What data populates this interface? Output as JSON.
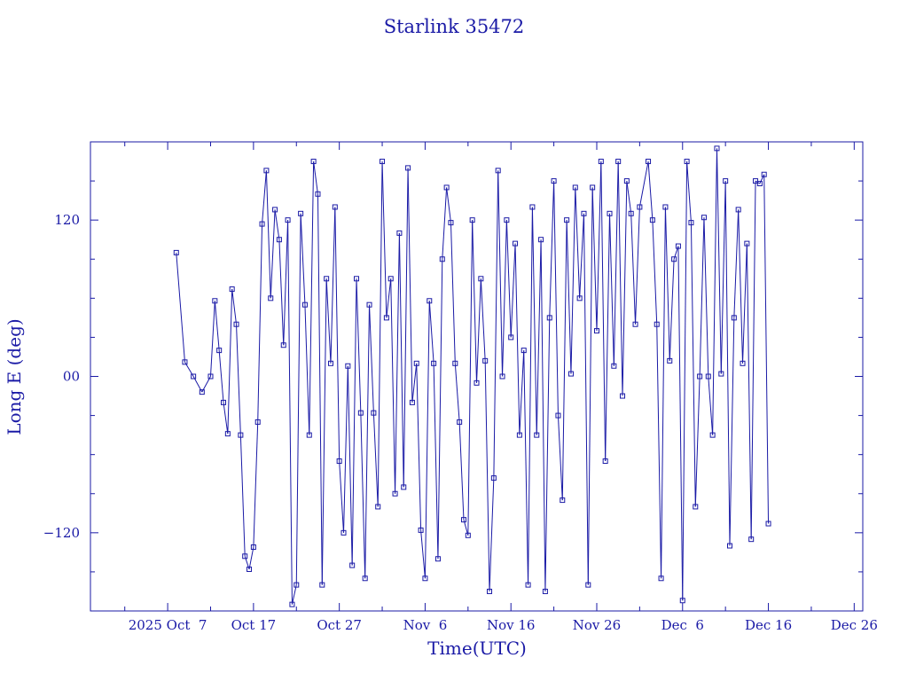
{
  "chart_data": {
    "type": "line",
    "title": "Starlink 35472",
    "xlabel": "Time(UTC)",
    "ylabel": "Long E (deg)",
    "x_unit": "date",
    "xlim": [
      "2025-09-28",
      "2025-12-27"
    ],
    "ylim": [
      -180,
      180
    ],
    "x_ticks": [
      {
        "date": "2025-10-07",
        "label": "2025 Oct  7"
      },
      {
        "date": "2025-10-17",
        "label": "Oct 17"
      },
      {
        "date": "2025-10-27",
        "label": "Oct 27"
      },
      {
        "date": "2025-11-06",
        "label": "Nov  6"
      },
      {
        "date": "2025-11-16",
        "label": "Nov 16"
      },
      {
        "date": "2025-11-26",
        "label": "Nov 26"
      },
      {
        "date": "2025-12-06",
        "label": "Dec  6"
      },
      {
        "date": "2025-12-16",
        "label": "Dec 16"
      },
      {
        "date": "2025-12-26",
        "label": "Dec 26"
      }
    ],
    "y_ticks": [
      {
        "value": 120,
        "label": "120"
      },
      {
        "value": 0,
        "label": "00"
      },
      {
        "value": -120,
        "label": "−120"
      }
    ],
    "grid": false,
    "marker": "square",
    "color": "#1a1aa6",
    "series": [
      {
        "points": [
          [
            "2025-10-08",
            95
          ],
          [
            "2025-10-09",
            11
          ],
          [
            "2025-10-10",
            0
          ],
          [
            "2025-10-11",
            -12
          ],
          [
            "2025-10-12",
            0
          ],
          [
            "2025-10-12T12",
            58
          ],
          [
            "2025-10-13",
            20
          ],
          [
            "2025-10-13T12",
            -20
          ],
          [
            "2025-10-14",
            -44
          ],
          [
            "2025-10-14T12",
            67
          ],
          [
            "2025-10-15",
            40
          ],
          [
            "2025-10-15T12",
            -45
          ],
          [
            "2025-10-16",
            -138
          ],
          [
            "2025-10-16T12",
            -148
          ],
          [
            "2025-10-17",
            -131
          ],
          [
            "2025-10-17T12",
            -35
          ],
          [
            "2025-10-18",
            117
          ],
          [
            "2025-10-18T12",
            158
          ],
          [
            "2025-10-19",
            60
          ],
          [
            "2025-10-19T12",
            128
          ],
          [
            "2025-10-20",
            105
          ],
          [
            "2025-10-20T12",
            24
          ],
          [
            "2025-10-21",
            120
          ],
          [
            "2025-10-21T12",
            -175
          ],
          [
            "2025-10-22",
            -160
          ],
          [
            "2025-10-22T12",
            125
          ],
          [
            "2025-10-23",
            55
          ],
          [
            "2025-10-23T12",
            -45
          ],
          [
            "2025-10-24",
            165
          ],
          [
            "2025-10-24T12",
            140
          ],
          [
            "2025-10-25",
            -160
          ],
          [
            "2025-10-25T12",
            75
          ],
          [
            "2025-10-26",
            10
          ],
          [
            "2025-10-26T12",
            130
          ],
          [
            "2025-10-27",
            -65
          ],
          [
            "2025-10-27T12",
            -120
          ],
          [
            "2025-10-28",
            8
          ],
          [
            "2025-10-28T12",
            -145
          ],
          [
            "2025-10-29",
            75
          ],
          [
            "2025-10-29T12",
            -28
          ],
          [
            "2025-10-30",
            -155
          ],
          [
            "2025-10-30T12",
            55
          ],
          [
            "2025-10-31",
            -28
          ],
          [
            "2025-10-31T12",
            -100
          ],
          [
            "2025-11-01",
            165
          ],
          [
            "2025-11-01T12",
            45
          ],
          [
            "2025-11-02",
            75
          ],
          [
            "2025-11-02T12",
            -90
          ],
          [
            "2025-11-03",
            110
          ],
          [
            "2025-11-03T12",
            -85
          ],
          [
            "2025-11-04",
            160
          ],
          [
            "2025-11-04T12",
            -20
          ],
          [
            "2025-11-05",
            10
          ],
          [
            "2025-11-05T12",
            -118
          ],
          [
            "2025-11-06",
            -155
          ],
          [
            "2025-11-06T12",
            58
          ],
          [
            "2025-11-07",
            10
          ],
          [
            "2025-11-07T12",
            -140
          ],
          [
            "2025-11-08",
            90
          ],
          [
            "2025-11-08T12",
            145
          ],
          [
            "2025-11-09",
            118
          ],
          [
            "2025-11-09T12",
            10
          ],
          [
            "2025-11-10",
            -35
          ],
          [
            "2025-11-10T12",
            -110
          ],
          [
            "2025-11-11",
            -122
          ],
          [
            "2025-11-11T12",
            120
          ],
          [
            "2025-11-12",
            -5
          ],
          [
            "2025-11-12T12",
            75
          ],
          [
            "2025-11-13",
            12
          ],
          [
            "2025-11-13T12",
            -165
          ],
          [
            "2025-11-14",
            -78
          ],
          [
            "2025-11-14T12",
            158
          ],
          [
            "2025-11-15",
            0
          ],
          [
            "2025-11-15T12",
            120
          ],
          [
            "2025-11-16",
            30
          ],
          [
            "2025-11-16T12",
            102
          ],
          [
            "2025-11-17",
            -45
          ],
          [
            "2025-11-17T12",
            20
          ],
          [
            "2025-11-18",
            -160
          ],
          [
            "2025-11-18T12",
            130
          ],
          [
            "2025-11-19",
            -45
          ],
          [
            "2025-11-19T12",
            105
          ],
          [
            "2025-11-20",
            -165
          ],
          [
            "2025-11-20T12",
            45
          ],
          [
            "2025-11-21",
            150
          ],
          [
            "2025-11-21T12",
            -30
          ],
          [
            "2025-11-22",
            -95
          ],
          [
            "2025-11-22T12",
            120
          ],
          [
            "2025-11-23",
            2
          ],
          [
            "2025-11-23T12",
            145
          ],
          [
            "2025-11-24",
            60
          ],
          [
            "2025-11-24T12",
            125
          ],
          [
            "2025-11-25",
            -160
          ],
          [
            "2025-11-25T12",
            145
          ],
          [
            "2025-11-26",
            35
          ],
          [
            "2025-11-26T12",
            165
          ],
          [
            "2025-11-27",
            -65
          ],
          [
            "2025-11-27T12",
            125
          ],
          [
            "2025-11-28",
            8
          ],
          [
            "2025-11-28T12",
            165
          ],
          [
            "2025-11-29",
            -15
          ],
          [
            "2025-11-29T12",
            150
          ],
          [
            "2025-11-30",
            125
          ],
          [
            "2025-11-30T12",
            40
          ],
          [
            "2025-12-01",
            130
          ],
          [
            "2025-12-02",
            165
          ],
          [
            "2025-12-02T12",
            120
          ],
          [
            "2025-12-03",
            40
          ],
          [
            "2025-12-03T12",
            -155
          ],
          [
            "2025-12-04",
            130
          ],
          [
            "2025-12-04T12",
            12
          ],
          [
            "2025-12-05",
            90
          ],
          [
            "2025-12-05T12",
            100
          ],
          [
            "2025-12-06",
            -172
          ],
          [
            "2025-12-06T12",
            165
          ],
          [
            "2025-12-07",
            118
          ],
          [
            "2025-12-07T12",
            -100
          ],
          [
            "2025-12-08",
            0
          ],
          [
            "2025-12-08T12",
            122
          ],
          [
            "2025-12-09",
            0
          ],
          [
            "2025-12-09T12",
            -45
          ],
          [
            "2025-12-10",
            175
          ],
          [
            "2025-12-10T12",
            2
          ],
          [
            "2025-12-11",
            150
          ],
          [
            "2025-12-11T12",
            -130
          ],
          [
            "2025-12-12",
            45
          ],
          [
            "2025-12-12T12",
            128
          ],
          [
            "2025-12-13",
            10
          ],
          [
            "2025-12-13T12",
            102
          ],
          [
            "2025-12-14",
            -125
          ],
          [
            "2025-12-14T12",
            150
          ],
          [
            "2025-12-15",
            148
          ],
          [
            "2025-12-15T12",
            155
          ],
          [
            "2025-12-16",
            -113
          ]
        ]
      }
    ]
  }
}
